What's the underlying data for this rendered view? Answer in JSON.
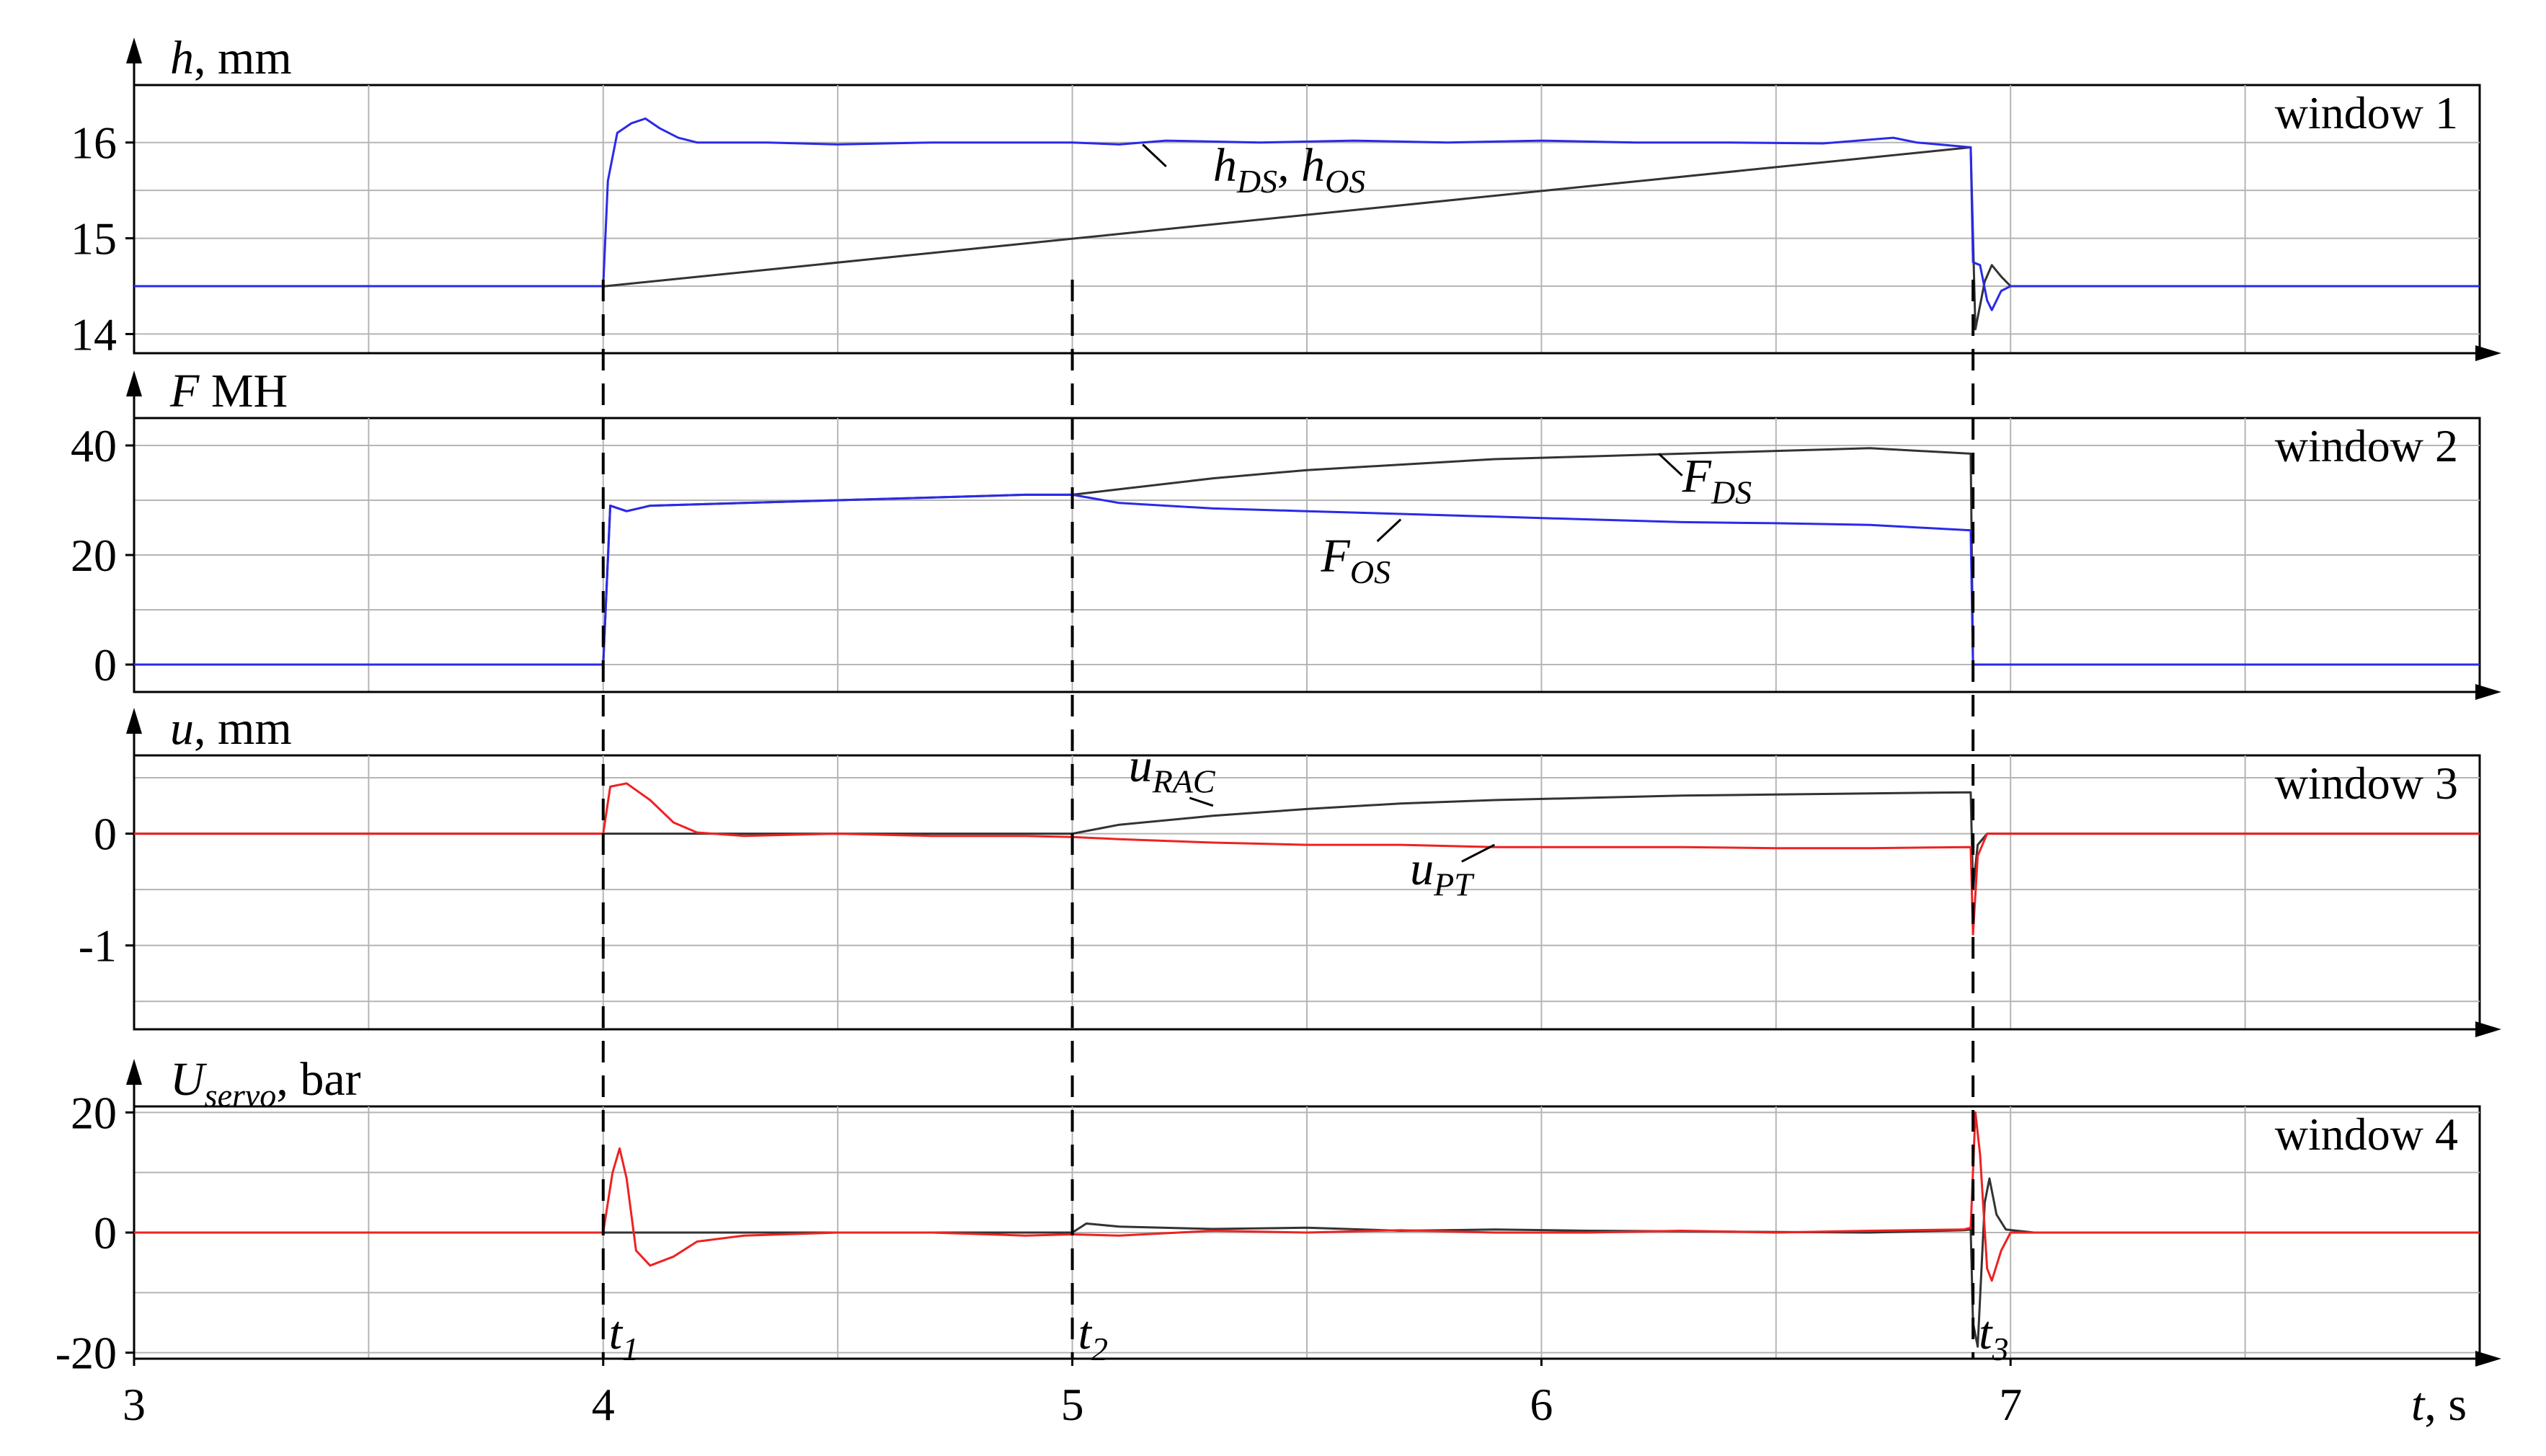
{
  "chart_data": {
    "type": "line",
    "x_axis": {
      "label_var": "t",
      "label_unit": "s",
      "range": [
        3,
        8
      ],
      "ticks": [
        "3",
        "4",
        "5",
        "6",
        "7"
      ],
      "tick_values": [
        3,
        4,
        5,
        6,
        7
      ],
      "markers": [
        {
          "var": "t",
          "sub": "1",
          "x": 4.0
        },
        {
          "var": "t",
          "sub": "2",
          "x": 5.0
        },
        {
          "var": "t",
          "sub": "3",
          "x": 6.92
        }
      ]
    },
    "grid": true,
    "panels": [
      {
        "window_label": "window 1",
        "ylabel_var": "h",
        "ylabel_sub": "",
        "ylabel_unit": ", mm",
        "ylim": [
          13.8,
          16.6
        ],
        "yticks": [
          "14",
          "15",
          "16"
        ],
        "ytick_values": [
          14,
          15,
          16
        ],
        "minor_grid": [
          14.5,
          15.5
        ],
        "series": [
          {
            "color": "#333333",
            "points": [
              [
                3,
                14.5
              ],
              [
                4.0,
                14.5
              ],
              [
                4.005,
                14.5
              ],
              [
                6.915,
                15.95
              ],
              [
                6.925,
                14.05
              ],
              [
                6.945,
                14.55
              ],
              [
                6.96,
                14.72
              ],
              [
                6.98,
                14.6
              ],
              [
                7.0,
                14.5
              ],
              [
                8,
                14.5
              ]
            ]
          },
          {
            "color": "#2a2ae8",
            "points": [
              [
                3,
                14.5
              ],
              [
                4.0,
                14.5
              ],
              [
                4.01,
                15.6
              ],
              [
                4.03,
                16.1
              ],
              [
                4.06,
                16.2
              ],
              [
                4.09,
                16.25
              ],
              [
                4.12,
                16.15
              ],
              [
                4.16,
                16.05
              ],
              [
                4.2,
                16.0
              ],
              [
                4.35,
                16.0
              ],
              [
                4.5,
                15.98
              ],
              [
                4.7,
                16.0
              ],
              [
                4.9,
                16.0
              ],
              [
                5.0,
                16.0
              ],
              [
                5.1,
                15.98
              ],
              [
                5.2,
                16.02
              ],
              [
                5.4,
                16.0
              ],
              [
                5.6,
                16.02
              ],
              [
                5.8,
                16.0
              ],
              [
                6.0,
                16.02
              ],
              [
                6.2,
                16.0
              ],
              [
                6.4,
                16.0
              ],
              [
                6.6,
                15.99
              ],
              [
                6.75,
                16.05
              ],
              [
                6.8,
                16.0
              ],
              [
                6.915,
                15.95
              ],
              [
                6.92,
                14.75
              ],
              [
                6.935,
                14.72
              ],
              [
                6.95,
                14.35
              ],
              [
                6.96,
                14.25
              ],
              [
                6.98,
                14.45
              ],
              [
                7.0,
                14.5
              ],
              [
                8,
                14.5
              ]
            ]
          }
        ],
        "annotations": [
          {
            "parts": [
              {
                "v": "h"
              },
              {
                "s": "DS"
              },
              {
                "v": ", h"
              },
              {
                "s": "OS"
              }
            ],
            "x": 5.3,
            "y": 15.6,
            "leader": [
              [
                5.15,
                15.98
              ],
              [
                5.2,
                15.75
              ]
            ]
          }
        ]
      },
      {
        "window_label": "window 2",
        "ylabel_var": "F",
        "ylabel_sub": "",
        "ylabel_unit": " MH",
        "ylim": [
          -5,
          45
        ],
        "yticks": [
          "0",
          "20",
          "40"
        ],
        "ytick_values": [
          0,
          20,
          40
        ],
        "minor_grid": [
          10,
          30
        ],
        "series": [
          {
            "color": "#333333",
            "points": [
              [
                3,
                0
              ],
              [
                4.0,
                0
              ],
              [
                4.015,
                29
              ],
              [
                4.05,
                28
              ],
              [
                4.1,
                29
              ],
              [
                4.3,
                29.5
              ],
              [
                4.5,
                30
              ],
              [
                4.7,
                30.5
              ],
              [
                4.9,
                31
              ],
              [
                5.0,
                31
              ],
              [
                5.1,
                32
              ],
              [
                5.3,
                34
              ],
              [
                5.5,
                35.5
              ],
              [
                5.7,
                36.5
              ],
              [
                5.9,
                37.5
              ],
              [
                6.1,
                38
              ],
              [
                6.3,
                38.5
              ],
              [
                6.5,
                39
              ],
              [
                6.7,
                39.5
              ],
              [
                6.915,
                38.5
              ],
              [
                6.92,
                0
              ],
              [
                8,
                0
              ]
            ]
          },
          {
            "color": "#2a2ae8",
            "points": [
              [
                3,
                0
              ],
              [
                4.0,
                0
              ],
              [
                4.015,
                29
              ],
              [
                4.05,
                28
              ],
              [
                4.1,
                29
              ],
              [
                4.3,
                29.5
              ],
              [
                4.5,
                30
              ],
              [
                4.7,
                30.5
              ],
              [
                4.9,
                31
              ],
              [
                5.0,
                31
              ],
              [
                5.1,
                29.5
              ],
              [
                5.3,
                28.5
              ],
              [
                5.5,
                28
              ],
              [
                5.7,
                27.5
              ],
              [
                5.9,
                27
              ],
              [
                6.1,
                26.5
              ],
              [
                6.3,
                26
              ],
              [
                6.5,
                25.8
              ],
              [
                6.7,
                25.5
              ],
              [
                6.915,
                24.5
              ],
              [
                6.92,
                0
              ],
              [
                8,
                0
              ]
            ]
          }
        ],
        "annotations": [
          {
            "parts": [
              {
                "v": "F"
              },
              {
                "s": "DS"
              }
            ],
            "x": 6.3,
            "y": 31.5,
            "leader": [
              [
                6.25,
                38.5
              ],
              [
                6.3,
                34.5
              ]
            ]
          },
          {
            "parts": [
              {
                "v": "F"
              },
              {
                "s": "OS"
              }
            ],
            "x": 5.53,
            "y": 17,
            "leader": [
              [
                5.7,
                26.5
              ],
              [
                5.65,
                22.5
              ]
            ]
          }
        ]
      },
      {
        "window_label": "window 3",
        "ylabel_var": "u",
        "ylabel_sub": "",
        "ylabel_unit": ", mm",
        "ylim": [
          -1.75,
          0.7
        ],
        "yticks": [
          "0",
          "-1"
        ],
        "ytick_values": [
          0,
          -1
        ],
        "minor_grid": [
          -0.5,
          -1.5,
          0.5
        ],
        "series": [
          {
            "color": "#333333",
            "points": [
              [
                3,
                0
              ],
              [
                4.0,
                0
              ],
              [
                4.9,
                0
              ],
              [
                5.0,
                0
              ],
              [
                5.1,
                0.08
              ],
              [
                5.3,
                0.16
              ],
              [
                5.5,
                0.22
              ],
              [
                5.7,
                0.27
              ],
              [
                5.9,
                0.3
              ],
              [
                6.1,
                0.32
              ],
              [
                6.3,
                0.34
              ],
              [
                6.5,
                0.35
              ],
              [
                6.7,
                0.36
              ],
              [
                6.915,
                0.37
              ],
              [
                6.92,
                -0.5
              ],
              [
                6.93,
                -0.1
              ],
              [
                6.95,
                0
              ],
              [
                8,
                0
              ]
            ]
          },
          {
            "color": "#ee2222",
            "points": [
              [
                3,
                0
              ],
              [
                4.0,
                0
              ],
              [
                4.015,
                0.42
              ],
              [
                4.05,
                0.45
              ],
              [
                4.1,
                0.3
              ],
              [
                4.15,
                0.1
              ],
              [
                4.2,
                0.01
              ],
              [
                4.3,
                -0.02
              ],
              [
                4.5,
                0
              ],
              [
                4.7,
                -0.02
              ],
              [
                4.9,
                -0.02
              ],
              [
                5.0,
                -0.03
              ],
              [
                5.1,
                -0.05
              ],
              [
                5.3,
                -0.08
              ],
              [
                5.5,
                -0.1
              ],
              [
                5.7,
                -0.1
              ],
              [
                5.9,
                -0.12
              ],
              [
                6.1,
                -0.12
              ],
              [
                6.3,
                -0.12
              ],
              [
                6.5,
                -0.13
              ],
              [
                6.7,
                -0.13
              ],
              [
                6.915,
                -0.12
              ],
              [
                6.92,
                -0.9
              ],
              [
                6.93,
                -0.2
              ],
              [
                6.95,
                0
              ],
              [
                8,
                0
              ]
            ]
          }
        ],
        "annotations": [
          {
            "parts": [
              {
                "v": "u"
              },
              {
                "s": "RAC"
              }
            ],
            "x": 5.12,
            "y": 0.47,
            "leader": [
              [
                5.3,
                0.25
              ],
              [
                5.25,
                0.32
              ]
            ]
          },
          {
            "parts": [
              {
                "v": "u"
              },
              {
                "s": "PT"
              }
            ],
            "x": 5.72,
            "y": -0.45,
            "leader": [
              [
                5.9,
                -0.1
              ],
              [
                5.83,
                -0.25
              ]
            ]
          }
        ]
      },
      {
        "window_label": "window 4",
        "ylabel_var": "U",
        "ylabel_sub": "servo",
        "ylabel_unit": ", bar",
        "ylim": [
          -21,
          21
        ],
        "yticks": [
          "20",
          "0",
          "-20"
        ],
        "ytick_values": [
          20,
          0,
          -20
        ],
        "minor_grid": [
          10,
          -10
        ],
        "series": [
          {
            "color": "#333333",
            "points": [
              [
                3,
                0
              ],
              [
                5.0,
                0
              ],
              [
                5.03,
                1.5
              ],
              [
                5.1,
                1
              ],
              [
                5.3,
                0.6
              ],
              [
                5.5,
                0.8
              ],
              [
                5.7,
                0.3
              ],
              [
                5.9,
                0.5
              ],
              [
                6.1,
                0.3
              ],
              [
                6.3,
                0.2
              ],
              [
                6.5,
                0.1
              ],
              [
                6.7,
                0
              ],
              [
                6.9,
                0.4
              ],
              [
                6.915,
                0.5
              ],
              [
                6.92,
                -15
              ],
              [
                6.93,
                -19
              ],
              [
                6.945,
                5
              ],
              [
                6.955,
                9
              ],
              [
                6.97,
                3
              ],
              [
                6.99,
                0.5
              ],
              [
                7.05,
                0
              ],
              [
                8,
                0
              ]
            ]
          },
          {
            "color": "#ee2222",
            "points": [
              [
                3,
                0
              ],
              [
                4.0,
                0
              ],
              [
                4.02,
                10
              ],
              [
                4.035,
                14
              ],
              [
                4.05,
                9
              ],
              [
                4.07,
                -3
              ],
              [
                4.1,
                -5.5
              ],
              [
                4.15,
                -4
              ],
              [
                4.2,
                -1.5
              ],
              [
                4.3,
                -0.5
              ],
              [
                4.5,
                0
              ],
              [
                4.7,
                0
              ],
              [
                4.9,
                -0.5
              ],
              [
                5.0,
                -0.3
              ],
              [
                5.1,
                -0.5
              ],
              [
                5.3,
                0.3
              ],
              [
                5.5,
                0
              ],
              [
                5.7,
                0.4
              ],
              [
                5.9,
                0
              ],
              [
                6.1,
                0
              ],
              [
                6.3,
                0.3
              ],
              [
                6.5,
                0
              ],
              [
                6.7,
                0.3
              ],
              [
                6.9,
                0.5
              ],
              [
                6.915,
                0.8
              ],
              [
                6.925,
                20
              ],
              [
                6.935,
                13
              ],
              [
                6.95,
                -6
              ],
              [
                6.96,
                -8
              ],
              [
                6.98,
                -3
              ],
              [
                7.0,
                0
              ],
              [
                8,
                0
              ]
            ]
          }
        ],
        "annotations": []
      }
    ]
  }
}
